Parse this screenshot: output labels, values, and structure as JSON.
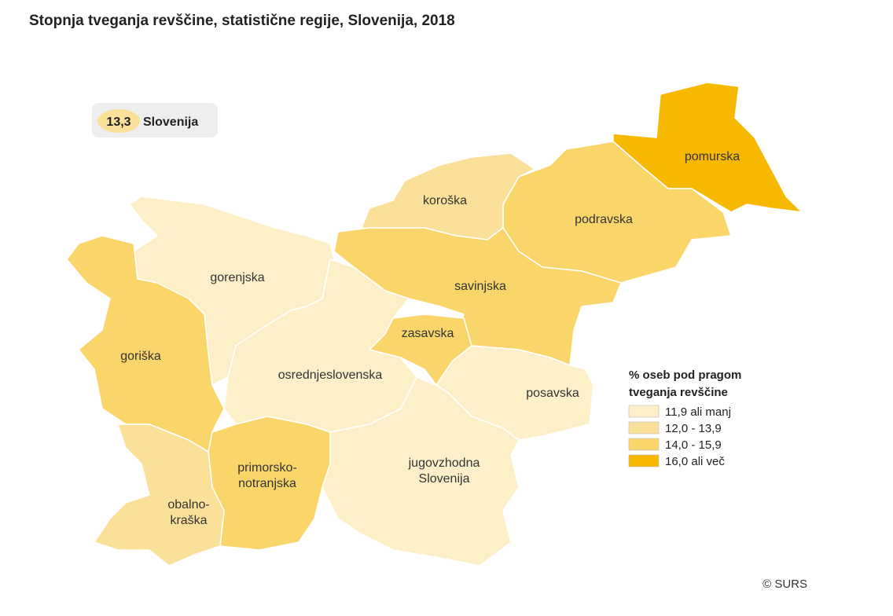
{
  "title": "Stopnja tveganja revščine, statistične regije, Slovenija, 2018",
  "national": {
    "value": {
      "value": 13.3,
      "label": "13,3"
    },
    "name": "Slovenija"
  },
  "regions": [
    {
      "label": "pomurska",
      "color": "#f7b800"
    },
    {
      "label": "podravska",
      "color": "#fad56a"
    },
    {
      "label": "koroška",
      "color": "#fbe09a"
    },
    {
      "label": "savinjska",
      "color": "#fad56a"
    },
    {
      "label": "zasavska",
      "color": "#fad56a"
    },
    {
      "label": "gorenjska",
      "color": "#fdf0c8"
    },
    {
      "label": "osrednjeslovenska",
      "color": "#fdf0c8"
    },
    {
      "label": "posavska",
      "color": "#fdf0c8"
    },
    {
      "label": [
        "jugovzhodna",
        "Slovenija"
      ],
      "color": "#fdf0c8"
    },
    {
      "label": "goriška",
      "color": "#fad56a"
    },
    {
      "label": [
        "primorsko-",
        "notranjska"
      ],
      "color": "#fad56a"
    },
    {
      "label": [
        "obalno-",
        "kraška"
      ],
      "color": "#fbe09a"
    }
  ],
  "legend": {
    "title": [
      "% oseb pod pragom",
      "tveganja revščine"
    ],
    "items": [
      {
        "label": "11,9 ali manj",
        "color": "#fdf0c8"
      },
      {
        "label": "12,0 - 13,9",
        "color": "#fbe09a"
      },
      {
        "label": "14,0 - 15,9",
        "color": "#fad56a"
      },
      {
        "label": "16,0 ali več",
        "color": "#f7b800"
      }
    ]
  },
  "credit": "© SURS"
}
